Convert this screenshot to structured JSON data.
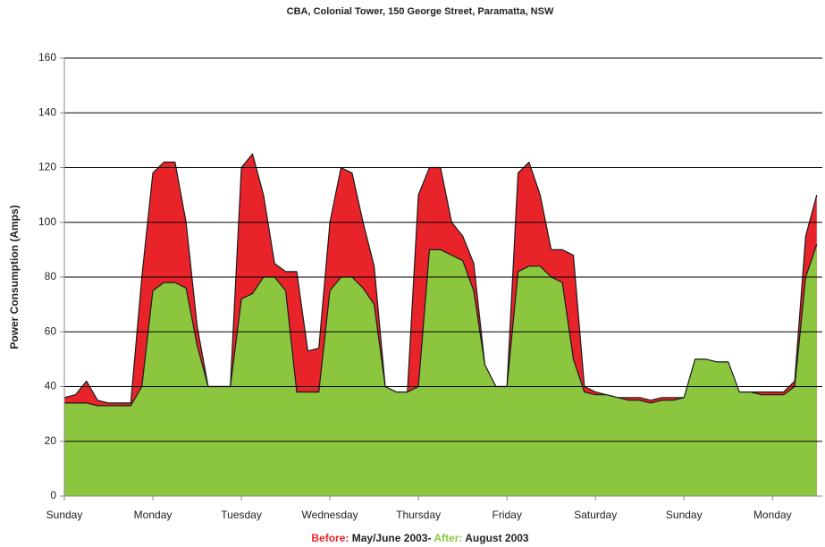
{
  "chart_data": {
    "type": "area",
    "title": "CBA, Colonial Tower, 150 George Street, Paramatta, NSW",
    "y_label": "Power Consumption (Amps)",
    "categories": [
      "Sunday",
      null,
      null,
      null,
      null,
      null,
      null,
      null,
      "Monday",
      null,
      null,
      null,
      null,
      null,
      null,
      null,
      "Tuesday",
      null,
      null,
      null,
      null,
      null,
      null,
      null,
      "Wednesday",
      null,
      null,
      null,
      null,
      null,
      null,
      null,
      "Thursday",
      null,
      null,
      null,
      null,
      null,
      null,
      null,
      "Friday",
      null,
      null,
      null,
      null,
      null,
      null,
      null,
      "Saturday",
      null,
      null,
      null,
      null,
      null,
      null,
      null,
      "Sunday",
      null,
      null,
      null,
      null,
      null,
      null,
      null,
      "Monday",
      null,
      null,
      null,
      null
    ],
    "series": [
      {
        "name": "Before:",
        "period": "May/June 2003-",
        "color": "#e8242a",
        "values": [
          36,
          37,
          42,
          35,
          34,
          34,
          34,
          80,
          118,
          122,
          122,
          100,
          62,
          40,
          40,
          40,
          120,
          125,
          110,
          85,
          82,
          82,
          53,
          54,
          100,
          120,
          118,
          100,
          84,
          40,
          38,
          38,
          110,
          120,
          120,
          100,
          95,
          85,
          48,
          40,
          40,
          118,
          122,
          110,
          90,
          90,
          88,
          40,
          38,
          37,
          36,
          36,
          36,
          35,
          36,
          36,
          36,
          36,
          36,
          36,
          36,
          38,
          38,
          38,
          38,
          38,
          42,
          95,
          110
        ]
      },
      {
        "name": "After:",
        "period": "August 2003",
        "color": "#8cc63f",
        "values": [
          34,
          34,
          34,
          33,
          33,
          33,
          33,
          40,
          75,
          78,
          78,
          76,
          55,
          40,
          40,
          40,
          72,
          74,
          80,
          80,
          75,
          38,
          38,
          38,
          75,
          80,
          80,
          76,
          70,
          40,
          38,
          38,
          40,
          90,
          90,
          88,
          86,
          75,
          48,
          40,
          40,
          82,
          84,
          84,
          80,
          78,
          50,
          38,
          37,
          37,
          36,
          35,
          35,
          34,
          35,
          35,
          36,
          50,
          50,
          49,
          49,
          38,
          38,
          37,
          37,
          37,
          40,
          80,
          92
        ]
      }
    ],
    "ylim": [
      0,
      160
    ],
    "yticks": [
      0,
      20,
      40,
      60,
      80,
      100,
      120,
      140,
      160
    ],
    "grid": true
  }
}
